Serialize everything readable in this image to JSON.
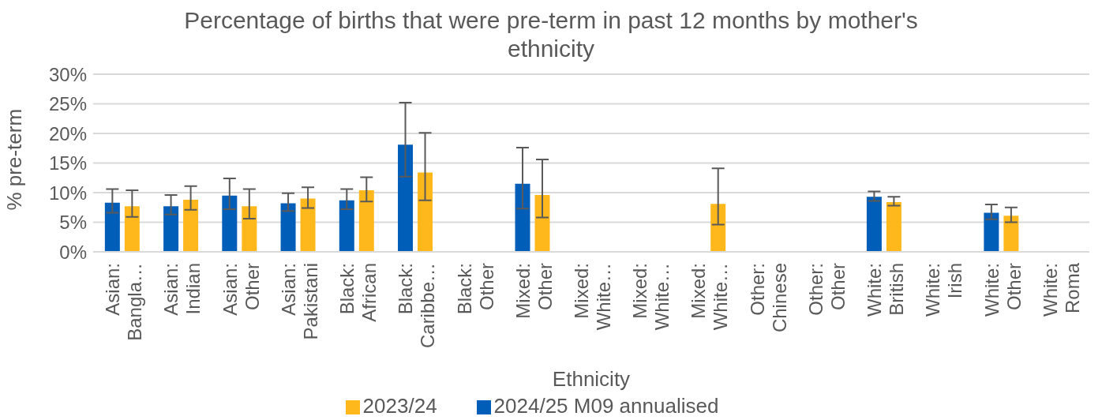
{
  "chart_data": {
    "type": "bar",
    "title": "Percentage of births that were pre-term in past 12 months by mother's ethnicity",
    "xlabel": "Ethnicity",
    "ylabel": "% pre-term",
    "categories": [
      "Asian: Bangla…",
      "Asian: Indian",
      "Asian: Other",
      "Asian: Pakistani",
      "Black: African",
      "Black: Caribbe…",
      "Black: Other",
      "Mixed: Other",
      "Mixed: White…",
      "Mixed: White…",
      "Mixed: White…",
      "Other: Chinese",
      "Other: Other",
      "White: British",
      "White: Irish",
      "White: Other",
      "White: Roma"
    ],
    "series": [
      {
        "name": "2024/25 M09 annualised",
        "color": "#005eb8",
        "values": [
          8.3,
          7.7,
          9.5,
          8.2,
          8.7,
          18.1,
          0,
          11.5,
          0,
          0,
          0,
          0,
          0,
          9.3,
          0,
          6.6,
          0
        ],
        "errors": [
          [
            6.6,
            10.6
          ],
          [
            6.3,
            9.6
          ],
          [
            7.2,
            12.4
          ],
          [
            6.9,
            9.9
          ],
          [
            7.2,
            10.6
          ],
          [
            12.7,
            25.2
          ],
          null,
          [
            7.3,
            17.6
          ],
          null,
          null,
          null,
          null,
          null,
          [
            8.6,
            10.2
          ],
          null,
          [
            5.5,
            8.0
          ],
          null
        ]
      },
      {
        "name": "2023/24",
        "color": "#ffb81c",
        "values": [
          7.7,
          8.8,
          7.7,
          9.0,
          10.4,
          13.4,
          0,
          9.6,
          0,
          0,
          8.1,
          0,
          0,
          8.4,
          0,
          6.1,
          0
        ],
        "errors": [
          [
            5.9,
            10.4
          ],
          [
            7.1,
            11.1
          ],
          [
            5.6,
            10.6
          ],
          [
            7.4,
            10.9
          ],
          [
            8.5,
            12.6
          ],
          [
            8.7,
            20.1
          ],
          null,
          [
            5.8,
            15.6
          ],
          null,
          null,
          [
            4.6,
            14.1
          ],
          null,
          null,
          [
            7.8,
            9.3
          ],
          null,
          [
            5.0,
            7.5
          ],
          null
        ]
      }
    ],
    "ylim": [
      0,
      30
    ],
    "yticks": [
      {
        "value": 0,
        "label": "0%"
      },
      {
        "value": 5,
        "label": "5%"
      },
      {
        "value": 10,
        "label": "10%"
      },
      {
        "value": 15,
        "label": "15%"
      },
      {
        "value": 20,
        "label": "20%"
      },
      {
        "value": 25,
        "label": "25%"
      },
      {
        "value": 30,
        "label": "30%"
      }
    ],
    "grid": "y",
    "legend": "bottom"
  }
}
